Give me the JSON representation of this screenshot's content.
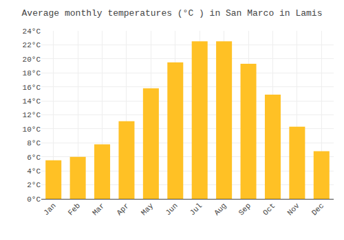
{
  "chart_data": {
    "type": "bar",
    "title": "Average monthly temperatures (°C ) in San Marco in Lamis",
    "categories": [
      "Jan",
      "Feb",
      "Mar",
      "Apr",
      "May",
      "Jun",
      "Jul",
      "Aug",
      "Sep",
      "Oct",
      "Nov",
      "Dec"
    ],
    "values": [
      5.5,
      6.0,
      7.8,
      11.1,
      15.8,
      19.5,
      22.5,
      22.5,
      19.3,
      14.9,
      10.3,
      6.8
    ],
    "color": "#FFC125",
    "ylim": [
      0,
      24
    ],
    "yticks": [
      {
        "value": 0,
        "label": "0°C"
      },
      {
        "value": 2,
        "label": "2°C"
      },
      {
        "value": 4,
        "label": "4°C"
      },
      {
        "value": 6,
        "label": "6°C"
      },
      {
        "value": 8,
        "label": "8°C"
      },
      {
        "value": 10,
        "label": "10°C"
      },
      {
        "value": 12,
        "label": "12°C"
      },
      {
        "value": 14,
        "label": "14°C"
      },
      {
        "value": 16,
        "label": "16°C"
      },
      {
        "value": 18,
        "label": "18°C"
      },
      {
        "value": 20,
        "label": "20°C"
      },
      {
        "value": 22,
        "label": "22°C"
      },
      {
        "value": 24,
        "label": "24°C"
      }
    ],
    "grid": true
  }
}
